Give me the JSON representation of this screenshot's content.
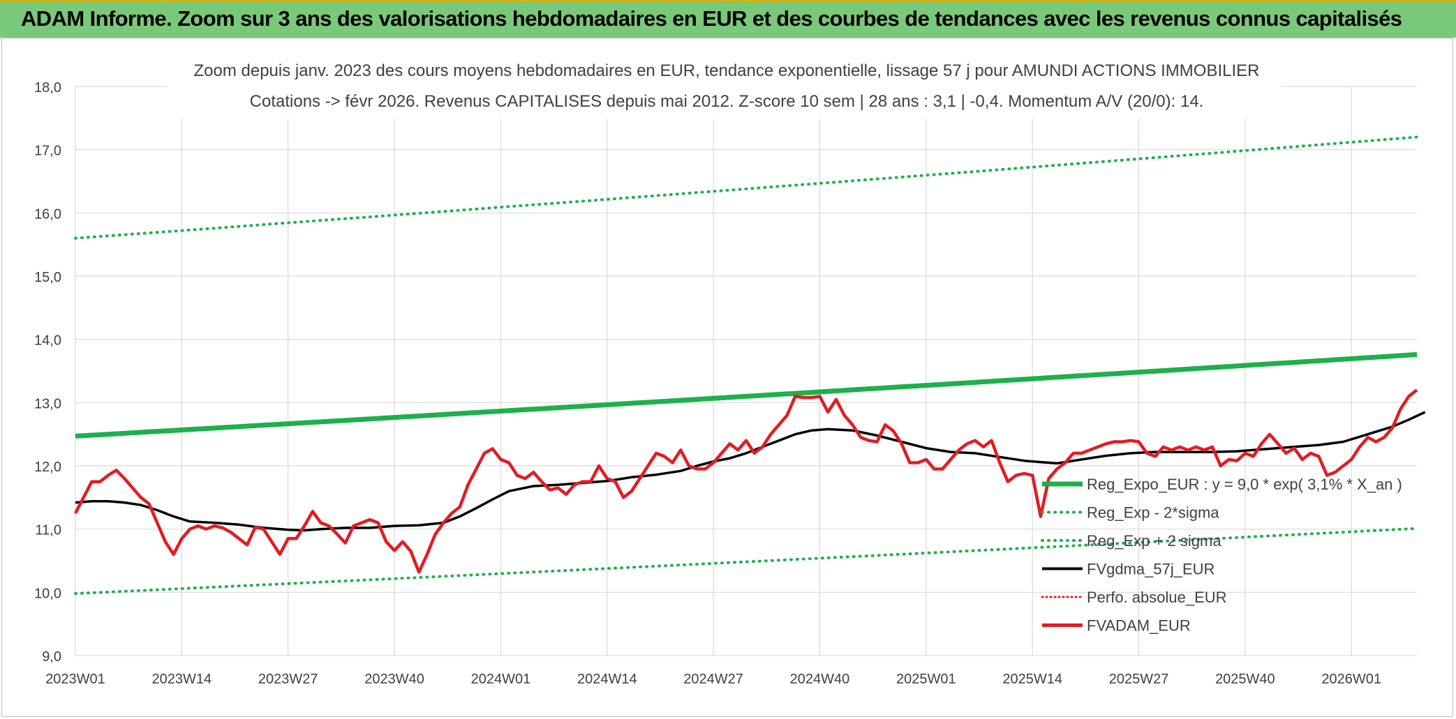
{
  "banner": {
    "title": "ADAM Informe. Zoom sur 3 ans des valorisations hebdomadaires en EUR et des courbes de tendances avec les revenus connus capitalisés"
  },
  "colors": {
    "banner_bg": "#7ac97a",
    "trend": "#1db04c",
    "sigma": "#1db04c",
    "fvgdma": "#000000",
    "perfo": "#e31b23",
    "fvadam": "#e31b23",
    "grid": "#d9d9d9",
    "axis_text": "#404040"
  },
  "chart_data": {
    "type": "line",
    "title_line1": "Zoom depuis janv. 2023 des cours moyens hebdomadaires en EUR, tendance exponentielle, lissage 57 j pour AMUNDI ACTIONS IMMOBILIER",
    "title_line2": "Cotations -> févr 2026. Revenus CAPITALISES depuis mai 2012. Z-score 10 sem | 28 ans : 3,1 | -0,4. Momentum A/V (20/0): 14.",
    "xlabel": "",
    "ylabel": "",
    "ylim": [
      9.0,
      18.0
    ],
    "yticks": [
      "9,0",
      "10,0",
      "11,0",
      "12,0",
      "13,0",
      "14,0",
      "15,0",
      "16,0",
      "17,0",
      "18,0"
    ],
    "n_weeks": 165,
    "xticks": [
      {
        "week": 0,
        "label": "2023W01"
      },
      {
        "week": 13,
        "label": "2023W14"
      },
      {
        "week": 26,
        "label": "2023W27"
      },
      {
        "week": 39,
        "label": "2023W40"
      },
      {
        "week": 52,
        "label": "2024W01"
      },
      {
        "week": 65,
        "label": "2024W14"
      },
      {
        "week": 78,
        "label": "2024W27"
      },
      {
        "week": 91,
        "label": "2024W40"
      },
      {
        "week": 104,
        "label": "2025W01"
      },
      {
        "week": 117,
        "label": "2025W14"
      },
      {
        "week": 130,
        "label": "2025W27"
      },
      {
        "week": 143,
        "label": "2025W40"
      },
      {
        "week": 156,
        "label": "2026W01"
      }
    ],
    "series": [
      {
        "name": "Reg_Expo_EUR : y = 9,0 * exp( 3,1% *  X_an )",
        "style": "thick",
        "start": 12.47,
        "end": 13.76
      },
      {
        "name": "Reg_Exp - 2*sigma",
        "style": "dotted",
        "start": 9.98,
        "end": 11.01
      },
      {
        "name": "Reg_Exp + 2 sigma",
        "style": "dotted",
        "start": 15.6,
        "end": 17.2
      },
      {
        "name": "FVgdma_57j_EUR",
        "style": "solid",
        "points": [
          [
            0,
            11.42
          ],
          [
            2,
            11.44
          ],
          [
            4,
            11.44
          ],
          [
            6,
            11.42
          ],
          [
            8,
            11.38
          ],
          [
            10,
            11.3
          ],
          [
            12,
            11.2
          ],
          [
            14,
            11.12
          ],
          [
            17,
            11.1
          ],
          [
            20,
            11.07
          ],
          [
            23,
            11.02
          ],
          [
            26,
            10.99
          ],
          [
            28,
            10.98
          ],
          [
            30,
            11.0
          ],
          [
            33,
            11.02
          ],
          [
            36,
            11.02
          ],
          [
            39,
            11.05
          ],
          [
            42,
            11.06
          ],
          [
            45,
            11.1
          ],
          [
            47,
            11.2
          ],
          [
            49,
            11.33
          ],
          [
            51,
            11.47
          ],
          [
            53,
            11.6
          ],
          [
            56,
            11.68
          ],
          [
            59,
            11.7
          ],
          [
            62,
            11.73
          ],
          [
            65,
            11.76
          ],
          [
            68,
            11.82
          ],
          [
            71,
            11.86
          ],
          [
            74,
            11.92
          ],
          [
            76,
            12.0
          ],
          [
            78,
            12.07
          ],
          [
            80,
            12.12
          ],
          [
            82,
            12.2
          ],
          [
            84,
            12.3
          ],
          [
            86,
            12.4
          ],
          [
            88,
            12.5
          ],
          [
            90,
            12.56
          ],
          [
            92,
            12.58
          ],
          [
            95,
            12.56
          ],
          [
            98,
            12.48
          ],
          [
            101,
            12.38
          ],
          [
            104,
            12.28
          ],
          [
            107,
            12.22
          ],
          [
            110,
            12.2
          ],
          [
            113,
            12.14
          ],
          [
            116,
            12.08
          ],
          [
            118,
            12.06
          ],
          [
            120,
            12.04
          ],
          [
            123,
            12.1
          ],
          [
            126,
            12.16
          ],
          [
            129,
            12.2
          ],
          [
            132,
            12.22
          ],
          [
            135,
            12.22
          ],
          [
            139,
            12.22
          ],
          [
            142,
            12.23
          ],
          [
            146,
            12.27
          ],
          [
            149,
            12.3
          ],
          [
            152,
            12.33
          ],
          [
            155,
            12.38
          ],
          [
            158,
            12.5
          ],
          [
            161,
            12.62
          ],
          [
            163,
            12.73
          ],
          [
            165,
            12.85
          ]
        ]
      },
      {
        "name": "Perfo. absolue_EUR",
        "style": "dotted",
        "points": []
      },
      {
        "name": "FVADAM_EUR",
        "style": "solid-thick",
        "points": [
          [
            0,
            11.25
          ],
          [
            1,
            11.5
          ],
          [
            2,
            11.75
          ],
          [
            3,
            11.75
          ],
          [
            4,
            11.85
          ],
          [
            5,
            11.93
          ],
          [
            6,
            11.8
          ],
          [
            7,
            11.65
          ],
          [
            8,
            11.5
          ],
          [
            9,
            11.4
          ],
          [
            10,
            11.1
          ],
          [
            11,
            10.8
          ],
          [
            12,
            10.6
          ],
          [
            13,
            10.85
          ],
          [
            14,
            11.0
          ],
          [
            15,
            11.05
          ],
          [
            16,
            11.0
          ],
          [
            17,
            11.05
          ],
          [
            18,
            11.02
          ],
          [
            19,
            10.95
          ],
          [
            20,
            10.85
          ],
          [
            21,
            10.75
          ],
          [
            22,
            11.03
          ],
          [
            23,
            11.0
          ],
          [
            24,
            10.8
          ],
          [
            25,
            10.6
          ],
          [
            26,
            10.85
          ],
          [
            27,
            10.85
          ],
          [
            28,
            11.05
          ],
          [
            29,
            11.28
          ],
          [
            30,
            11.1
          ],
          [
            31,
            11.05
          ],
          [
            32,
            10.92
          ],
          [
            33,
            10.78
          ],
          [
            34,
            11.05
          ],
          [
            35,
            11.1
          ],
          [
            36,
            11.15
          ],
          [
            37,
            11.1
          ],
          [
            38,
            10.8
          ],
          [
            39,
            10.66
          ],
          [
            40,
            10.8
          ],
          [
            41,
            10.65
          ],
          [
            42,
            10.32
          ],
          [
            43,
            10.6
          ],
          [
            44,
            10.92
          ],
          [
            45,
            11.1
          ],
          [
            46,
            11.25
          ],
          [
            47,
            11.35
          ],
          [
            48,
            11.7
          ],
          [
            49,
            11.95
          ],
          [
            50,
            12.2
          ],
          [
            51,
            12.27
          ],
          [
            52,
            12.1
          ],
          [
            53,
            12.05
          ],
          [
            54,
            11.85
          ],
          [
            55,
            11.8
          ],
          [
            56,
            11.9
          ],
          [
            57,
            11.75
          ],
          [
            58,
            11.62
          ],
          [
            59,
            11.65
          ],
          [
            60,
            11.55
          ],
          [
            61,
            11.7
          ],
          [
            62,
            11.75
          ],
          [
            63,
            11.75
          ],
          [
            64,
            12.0
          ],
          [
            65,
            11.8
          ],
          [
            66,
            11.75
          ],
          [
            67,
            11.5
          ],
          [
            68,
            11.6
          ],
          [
            69,
            11.8
          ],
          [
            70,
            12.0
          ],
          [
            71,
            12.2
          ],
          [
            72,
            12.15
          ],
          [
            73,
            12.05
          ],
          [
            74,
            12.25
          ],
          [
            75,
            12.0
          ],
          [
            76,
            11.95
          ],
          [
            77,
            11.95
          ],
          [
            78,
            12.05
          ],
          [
            79,
            12.2
          ],
          [
            80,
            12.35
          ],
          [
            81,
            12.25
          ],
          [
            82,
            12.4
          ],
          [
            83,
            12.2
          ],
          [
            84,
            12.3
          ],
          [
            85,
            12.5
          ],
          [
            86,
            12.65
          ],
          [
            87,
            12.8
          ],
          [
            88,
            13.1
          ],
          [
            89,
            13.08
          ],
          [
            90,
            13.08
          ],
          [
            91,
            13.1
          ],
          [
            92,
            12.85
          ],
          [
            93,
            13.05
          ],
          [
            94,
            12.8
          ],
          [
            95,
            12.65
          ],
          [
            96,
            12.45
          ],
          [
            97,
            12.4
          ],
          [
            98,
            12.38
          ],
          [
            99,
            12.65
          ],
          [
            100,
            12.55
          ],
          [
            101,
            12.35
          ],
          [
            102,
            12.05
          ],
          [
            103,
            12.05
          ],
          [
            104,
            12.1
          ],
          [
            105,
            11.95
          ],
          [
            106,
            11.95
          ],
          [
            107,
            12.1
          ],
          [
            108,
            12.25
          ],
          [
            109,
            12.35
          ],
          [
            110,
            12.4
          ],
          [
            111,
            12.3
          ],
          [
            112,
            12.4
          ],
          [
            113,
            12.05
          ],
          [
            114,
            11.75
          ],
          [
            115,
            11.85
          ],
          [
            116,
            11.88
          ],
          [
            117,
            11.85
          ],
          [
            118,
            11.2
          ],
          [
            119,
            11.8
          ],
          [
            120,
            11.95
          ],
          [
            121,
            12.05
          ],
          [
            122,
            12.2
          ],
          [
            123,
            12.2
          ],
          [
            124,
            12.25
          ],
          [
            125,
            12.3
          ],
          [
            126,
            12.35
          ],
          [
            127,
            12.38
          ],
          [
            128,
            12.38
          ],
          [
            129,
            12.4
          ],
          [
            130,
            12.38
          ],
          [
            131,
            12.2
          ],
          [
            132,
            12.15
          ],
          [
            133,
            12.3
          ],
          [
            134,
            12.25
          ],
          [
            135,
            12.3
          ],
          [
            136,
            12.25
          ],
          [
            137,
            12.3
          ],
          [
            138,
            12.25
          ],
          [
            139,
            12.3
          ],
          [
            140,
            12.0
          ],
          [
            141,
            12.1
          ],
          [
            142,
            12.08
          ],
          [
            143,
            12.2
          ],
          [
            144,
            12.15
          ],
          [
            145,
            12.35
          ],
          [
            146,
            12.5
          ],
          [
            147,
            12.35
          ],
          [
            148,
            12.2
          ],
          [
            149,
            12.28
          ],
          [
            150,
            12.1
          ],
          [
            151,
            12.2
          ],
          [
            152,
            12.15
          ],
          [
            153,
            11.85
          ],
          [
            154,
            11.9
          ],
          [
            155,
            12.0
          ],
          [
            156,
            12.1
          ],
          [
            157,
            12.3
          ],
          [
            158,
            12.45
          ],
          [
            159,
            12.38
          ],
          [
            160,
            12.45
          ],
          [
            161,
            12.6
          ],
          [
            162,
            12.9
          ],
          [
            163,
            13.1
          ],
          [
            164,
            13.2
          ]
        ]
      }
    ]
  }
}
